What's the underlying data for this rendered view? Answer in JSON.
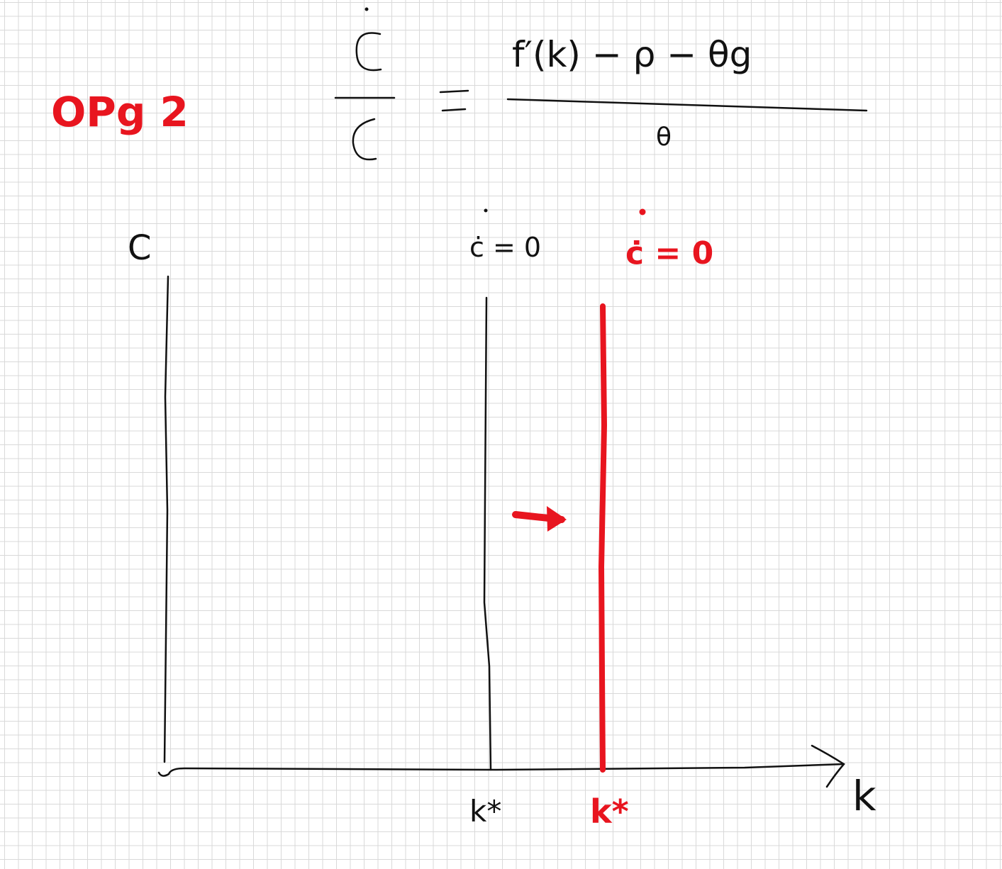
{
  "title": "OPg 2",
  "equation": {
    "lhs_numerator": "C",
    "lhs_denominator": "C",
    "equals": "=",
    "rhs_numerator": "f′(k) − ρ − θg",
    "rhs_denominator": "θ"
  },
  "axes": {
    "y_label": "C",
    "x_label": "k"
  },
  "original_line": {
    "label": "ċ = 0",
    "tick_label": "k*"
  },
  "shifted_line": {
    "label": "ċ = 0",
    "tick_label": "k*"
  },
  "shift_direction": "right",
  "colors": {
    "ink": "#111111",
    "accent": "#e8151f",
    "grid": "#d9d9d9"
  }
}
